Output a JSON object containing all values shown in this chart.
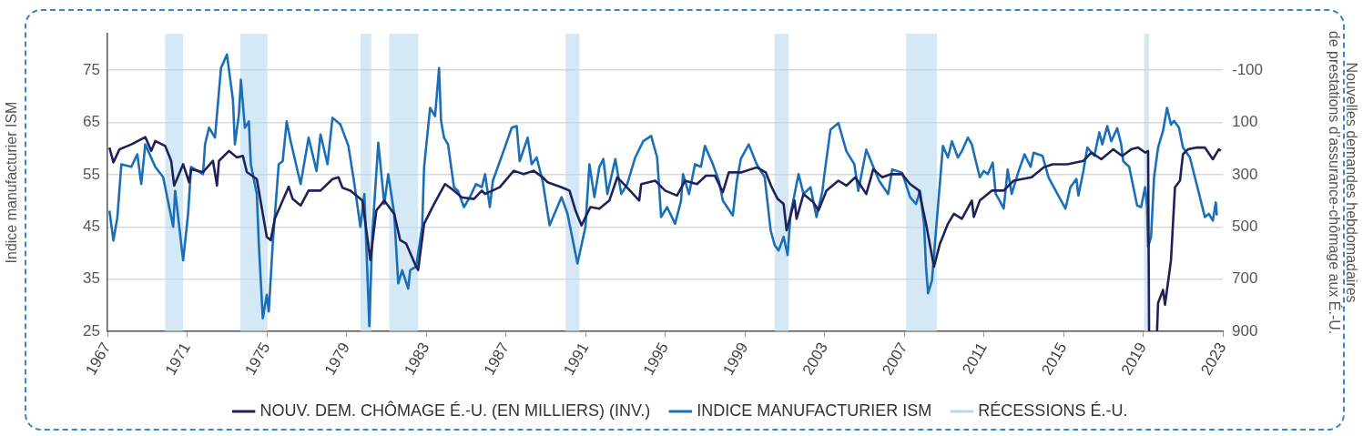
{
  "chart_data": {
    "type": "line",
    "ylabel": "Indice manufacturier ISM",
    "y2label": "Nouvelles demandes hebdomadaires\nde prestations d’assurance-chômage aux É.-U.",
    "xlim": [
      1967,
      2023
    ],
    "xticks": [
      1967,
      1971,
      1975,
      1979,
      1983,
      1987,
      1991,
      1995,
      1999,
      2003,
      2007,
      2011,
      2015,
      2019,
      2023
    ],
    "ylim": [
      25,
      82
    ],
    "yticks": [
      25,
      35,
      45,
      55,
      65,
      75
    ],
    "y2lim": [
      900,
      -240
    ],
    "y2ticks": [
      -100,
      100,
      300,
      500,
      700,
      900
    ],
    "grid": "y",
    "legend": "bottom",
    "marker": "none",
    "line_style": "solid",
    "bands": [
      {
        "axis": "x",
        "from": 1969.9,
        "to": 1970.8,
        "label": "RÉCESSIONS É.-U.",
        "color": "#b9d8f0"
      },
      {
        "axis": "x",
        "from": 1973.67,
        "to": 1975.04,
        "color": "#b9d8f0"
      },
      {
        "axis": "x",
        "from": 1979.7,
        "to": 1980.25,
        "color": "#b9d8f0"
      },
      {
        "axis": "x",
        "from": 1981.15,
        "to": 1982.6,
        "color": "#b9d8f0"
      },
      {
        "axis": "x",
        "from": 1990.0,
        "to": 1990.7,
        "color": "#b9d8f0"
      },
      {
        "axis": "x",
        "from": 2000.5,
        "to": 2001.2,
        "color": "#b9d8f0"
      },
      {
        "axis": "x",
        "from": 2007.1,
        "to": 2008.65,
        "color": "#b9d8f0"
      },
      {
        "axis": "x",
        "from": 2019.05,
        "to": 2019.3,
        "color": "#b9d8f0"
      }
    ],
    "series": [
      {
        "name": "NOUV. DEM. CHÔMAGE É.-U. (EN MILLIERS) (INV.)",
        "color": "#1e2258",
        "axis": "y2",
        "x": [
          1967.1,
          1967.3,
          1967.6,
          1968.2,
          1968.9,
          1969.2,
          1969.4,
          1969.9,
          1970.2,
          1970.35,
          1970.8,
          1971.1,
          1971.2,
          1971.8,
          1972.3,
          1972.5,
          1972.6,
          1973.1,
          1973.5,
          1973.8,
          1974.0,
          1974.5,
          1975.0,
          1975.2,
          1975.4,
          1975.8,
          1976.1,
          1976.3,
          1976.7,
          1977.1,
          1977.7,
          1978.3,
          1978.6,
          1978.8,
          1979.2,
          1979.8,
          1980.2,
          1980.5,
          1980.9,
          1981.4,
          1981.7,
          1982.0,
          1982.5,
          1982.6,
          1982.9,
          1983.4,
          1983.95,
          1984.3,
          1984.8,
          1985.4,
          1985.8,
          1985.96,
          1986.7,
          1987.4,
          1987.9,
          1988.4,
          1988.85,
          1989.1,
          1989.8,
          1990.2,
          1990.5,
          1990.8,
          1991.25,
          1991.7,
          1992.2,
          1992.6,
          1993.0,
          1993.7,
          1993.8,
          1994.5,
          1995.0,
          1995.6,
          1996.0,
          1996.6,
          1997.05,
          1997.5,
          1997.9,
          1998.2,
          1998.85,
          1999.6,
          2000.05,
          2000.35,
          2000.65,
          2000.95,
          2001.1,
          2001.5,
          2001.6,
          2001.95,
          2002.45,
          2002.7,
          2003.1,
          2003.3,
          2003.7,
          2004.1,
          2004.55,
          2005.1,
          2005.45,
          2005.9,
          2006.35,
          2006.9,
          2007.3,
          2007.75,
          2008.1,
          2008.5,
          2008.8,
          2009.2,
          2009.5,
          2009.9,
          2010.4,
          2010.5,
          2010.8,
          2011.4,
          2012.0,
          2012.5,
          2013.4,
          2014.0,
          2014.45,
          2015.2,
          2016.0,
          2016.4,
          2016.9,
          2017.5,
          2017.95,
          2018.4,
          2018.75,
          2019.1,
          2019.25,
          2019.3,
          2019.5,
          2019.7,
          2019.75,
          2020.0,
          2020.1,
          2020.4,
          2020.6,
          2020.85,
          2021.0,
          2021.25,
          2021.7,
          2022.1,
          2022.5,
          2022.8,
          2022.9
        ],
        "values": [
          196,
          253,
          203,
          184,
          156,
          209,
          171,
          190,
          247,
          342,
          260,
          329,
          279,
          290,
          247,
          342,
          247,
          209,
          234,
          228,
          290,
          317,
          538,
          551,
          469,
          399,
          346,
          393,
          418,
          361,
          361,
          317,
          310,
          350,
          361,
          399,
          627,
          437,
          399,
          450,
          551,
          564,
          652,
          665,
          488,
          412,
          336,
          355,
          387,
          393,
          361,
          374,
          348,
          285,
          298,
          285,
          310,
          329,
          348,
          361,
          437,
          494,
          424,
          430,
          399,
          310,
          342,
          399,
          336,
          323,
          361,
          380,
          323,
          336,
          304,
          304,
          367,
          291,
          291,
          272,
          291,
          348,
          393,
          412,
          513,
          399,
          469,
          374,
          406,
          437,
          361,
          348,
          323,
          342,
          310,
          374,
          279,
          310,
          298,
          298,
          336,
          361,
          488,
          652,
          564,
          488,
          450,
          469,
          399,
          462,
          399,
          361,
          361,
          323,
          310,
          272,
          260,
          260,
          247,
          215,
          241,
          203,
          228,
          203,
          196,
          215,
          209,
          900,
          null,
          900,
          792,
          741,
          798,
          627,
          348,
          323,
          222,
          203,
          196,
          196,
          241,
          203,
          209
        ]
      },
      {
        "name": "INDICE MANUFACTURIER ISM",
        "color": "#1a6fb8",
        "x": [
          1967.1,
          1967.3,
          1967.5,
          1967.7,
          1968.2,
          1968.5,
          1968.7,
          1968.9,
          1969.4,
          1969.8,
          1970.3,
          1970.4,
          1970.8,
          1971.05,
          1971.2,
          1971.8,
          1971.9,
          1972.1,
          1972.4,
          1972.7,
          1973.0,
          1973.3,
          1973.4,
          1973.6,
          1973.7,
          1973.9,
          1974.1,
          1974.2,
          1974.5,
          1974.6,
          1974.8,
          1975.0,
          1975.1,
          1975.3,
          1975.6,
          1975.8,
          1976.0,
          1976.2,
          1976.7,
          1977.1,
          1977.5,
          1977.7,
          1978.05,
          1978.3,
          1978.7,
          1979.1,
          1979.4,
          1979.7,
          1979.9,
          1980.15,
          1980.3,
          1980.6,
          1980.9,
          1981.1,
          1981.4,
          1981.6,
          1981.8,
          1982.1,
          1982.2,
          1982.5,
          1982.8,
          1982.9,
          1983.2,
          1983.45,
          1983.65,
          1983.75,
          1983.9,
          1984.1,
          1984.4,
          1984.6,
          1984.9,
          1985.2,
          1985.5,
          1985.8,
          1985.96,
          1986.2,
          1986.35,
          1986.65,
          1986.95,
          1987.3,
          1987.55,
          1987.7,
          1988.1,
          1988.3,
          1988.55,
          1988.85,
          1989.2,
          1989.8,
          1990.1,
          1990.6,
          1991.0,
          1991.2,
          1991.45,
          1991.7,
          1991.9,
          1992.1,
          1992.5,
          1992.8,
          1993.1,
          1993.5,
          1993.9,
          1994.3,
          1994.6,
          1994.8,
          1995.1,
          1995.5,
          1995.8,
          1995.9,
          1996.2,
          1996.5,
          1996.8,
          1997.0,
          1997.4,
          1997.7,
          1997.9,
          1998.4,
          1998.6,
          1998.8,
          1999.2,
          1999.6,
          2000.0,
          2000.3,
          2000.5,
          2000.7,
          2000.95,
          2001.15,
          2001.3,
          2001.7,
          2001.95,
          2002.3,
          2002.6,
          2002.9,
          2003.0,
          2003.3,
          2003.7,
          2004.1,
          2004.5,
          2004.7,
          2005.1,
          2005.4,
          2005.75,
          2006.2,
          2006.4,
          2006.9,
          2007.3,
          2007.6,
          2007.8,
          2008.0,
          2008.1,
          2008.2,
          2008.4,
          2008.6,
          2008.95,
          2009.2,
          2009.4,
          2009.7,
          2009.9,
          2010.2,
          2010.4,
          2010.6,
          2010.8,
          2011.0,
          2011.2,
          2011.45,
          2011.6,
          2011.8,
          2012.0,
          2012.2,
          2012.4,
          2012.75,
          2013.05,
          2013.35,
          2013.5,
          2013.95,
          2014.25,
          2014.7,
          2015.1,
          2015.35,
          2015.65,
          2015.75,
          2016.0,
          2016.2,
          2016.55,
          2016.8,
          2016.95,
          2017.2,
          2017.4,
          2017.7,
          2017.9,
          2018.0,
          2018.3,
          2018.7,
          2018.9,
          2019.1,
          2019.2,
          2019.25,
          2019.4,
          2019.55,
          2019.75,
          2020.0,
          2020.2,
          2020.4,
          2020.55,
          2020.8,
          2021.0,
          2021.35,
          2021.6,
          2021.85,
          2022.1,
          2022.3,
          2022.5,
          2022.65,
          2022.7
        ],
        "values": [
          48.1,
          42.4,
          46.9,
          57.0,
          56.5,
          58.9,
          53.2,
          60.8,
          56.5,
          54.5,
          45.0,
          51.9,
          38.6,
          47.5,
          56.5,
          55.1,
          60.8,
          64.0,
          62.1,
          75.4,
          78.0,
          69.4,
          60.8,
          66.5,
          73.2,
          64.0,
          65.2,
          57.0,
          51.3,
          41.8,
          27.5,
          32.0,
          28.8,
          41.8,
          57.0,
          57.6,
          65.2,
          61.4,
          53.2,
          62.1,
          55.7,
          62.7,
          57.0,
          65.9,
          64.6,
          60.5,
          53.2,
          45.0,
          51.3,
          26.0,
          43.7,
          61.1,
          49.4,
          55.1,
          47.5,
          34.2,
          36.7,
          33.2,
          36.7,
          37.4,
          45.0,
          56.5,
          67.8,
          66.2,
          75.4,
          65.3,
          62.1,
          60.8,
          52.6,
          51.9,
          48.8,
          50.7,
          53.2,
          52.6,
          55.1,
          48.8,
          53.8,
          57.0,
          60.2,
          64.0,
          64.3,
          57.6,
          62.1,
          57.0,
          58.3,
          53.8,
          45.3,
          50.7,
          47.5,
          38.0,
          45.0,
          57.0,
          50.7,
          56.5,
          58.0,
          51.3,
          58.0,
          51.3,
          53.2,
          58.3,
          61.4,
          62.4,
          58.3,
          46.9,
          48.8,
          45.6,
          50.0,
          55.1,
          51.3,
          57.0,
          56.5,
          60.5,
          57.0,
          53.8,
          50.0,
          47.2,
          53.8,
          58.0,
          60.8,
          57.0,
          54.5,
          44.3,
          41.5,
          40.5,
          43.1,
          39.6,
          47.5,
          55.1,
          51.3,
          52.6,
          46.9,
          51.9,
          55.1,
          63.6,
          64.9,
          59.5,
          57.0,
          51.9,
          59.8,
          57.0,
          53.8,
          51.3,
          56.0,
          55.4,
          50.7,
          49.4,
          51.9,
          45.6,
          37.4,
          32.3,
          34.8,
          44.3,
          60.5,
          58.3,
          61.4,
          58.3,
          59.5,
          62.1,
          60.8,
          57.6,
          54.5,
          55.7,
          55.1,
          57.3,
          51.3,
          50.0,
          48.5,
          56.0,
          51.3,
          55.7,
          58.9,
          56.5,
          59.2,
          58.6,
          54.5,
          51.3,
          48.5,
          52.6,
          54.2,
          51.0,
          55.7,
          60.2,
          58.6,
          63.1,
          60.8,
          64.3,
          61.4,
          63.9,
          60.8,
          57.6,
          56.5,
          49.1,
          48.8,
          52.6,
          48.8,
          41.2,
          43.1,
          54.5,
          60.2,
          63.4,
          67.8,
          64.6,
          65.3,
          64.0,
          60.2,
          58.3,
          54.5,
          50.7,
          46.9,
          47.5,
          46.2,
          49.7,
          47.2
        ]
      }
    ]
  }
}
